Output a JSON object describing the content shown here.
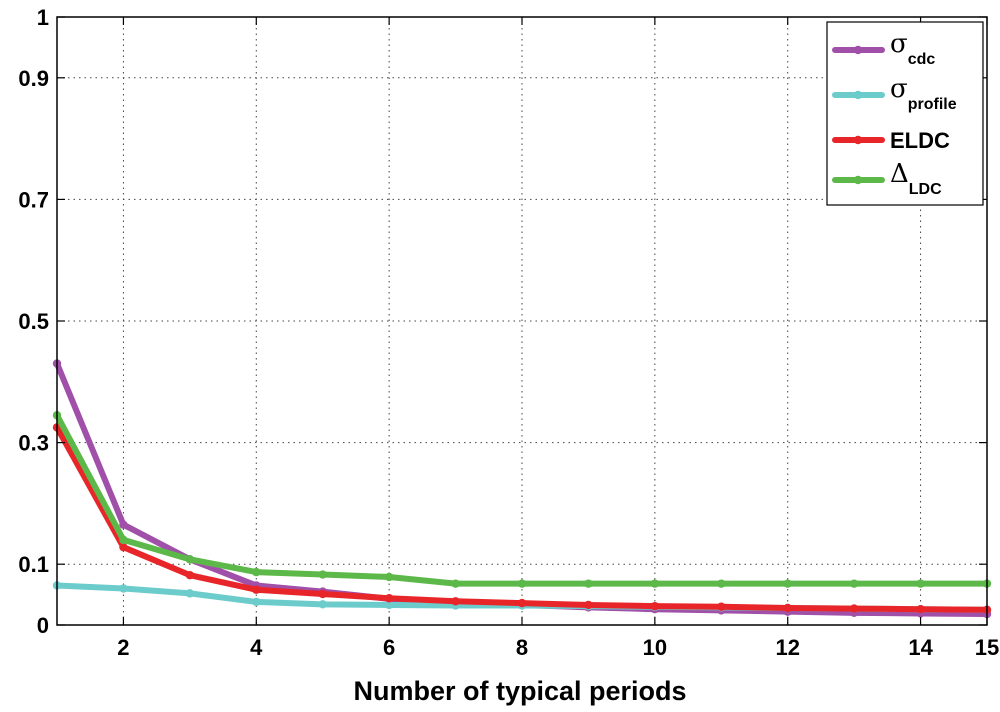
{
  "chart_data": {
    "type": "line",
    "title": "",
    "xlabel": "Number of typical periods",
    "ylabel": "",
    "xlim": [
      1,
      15
    ],
    "ylim": [
      0,
      1
    ],
    "grid": true,
    "grid_style": "dotted",
    "legend_position": "top-right",
    "x_ticks": [
      2,
      4,
      6,
      8,
      10,
      12,
      14,
      15
    ],
    "x_tick_labels": [
      "2",
      "4",
      "6",
      "8",
      "10",
      "12",
      "14",
      "15"
    ],
    "y_ticks": [
      0,
      0.1,
      0.3,
      0.5,
      0.7,
      0.9,
      1
    ],
    "y_tick_labels": [
      "0",
      "0.1",
      "0.3",
      "0.5",
      "0.7",
      "0.9",
      "1"
    ],
    "x": [
      1,
      2,
      3,
      4,
      5,
      6,
      7,
      8,
      9,
      10,
      11,
      12,
      13,
      14,
      15
    ],
    "series": [
      {
        "name": "σcdc",
        "symbol": "σ",
        "subscript": "cdc",
        "color": "#a050a8",
        "values": [
          0.43,
          0.165,
          0.108,
          0.065,
          0.055,
          0.043,
          0.038,
          0.033,
          0.029,
          0.026,
          0.024,
          0.022,
          0.02,
          0.019,
          0.018
        ]
      },
      {
        "name": "σprofile",
        "symbol": "σ",
        "subscript": "profile",
        "color": "#6ccccc",
        "values": [
          0.065,
          0.06,
          0.052,
          0.038,
          0.034,
          0.033,
          0.032,
          0.032,
          0.031,
          0.03,
          0.029,
          0.028,
          0.027,
          0.026,
          0.025
        ]
      },
      {
        "name": "ELDC",
        "symbol": "ELDC",
        "subscript": "",
        "color": "#e8262a",
        "values": [
          0.325,
          0.128,
          0.082,
          0.058,
          0.051,
          0.044,
          0.039,
          0.036,
          0.033,
          0.031,
          0.03,
          0.028,
          0.027,
          0.026,
          0.025
        ]
      },
      {
        "name": "ΔLDC",
        "symbol": "Δ",
        "subscript": "LDC",
        "color": "#5cb848",
        "values": [
          0.345,
          0.14,
          0.108,
          0.087,
          0.083,
          0.079,
          0.068,
          0.068,
          0.068,
          0.068,
          0.068,
          0.068,
          0.068,
          0.068,
          0.068
        ]
      }
    ]
  }
}
